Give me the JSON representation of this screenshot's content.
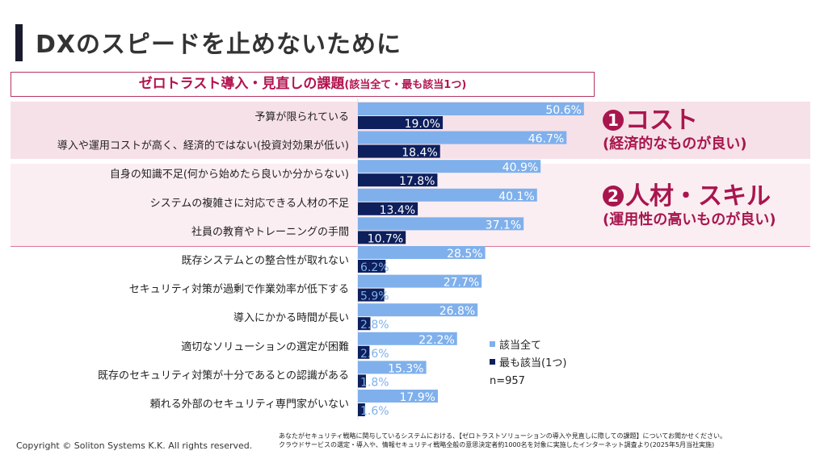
{
  "title": "DXのスピードを止めないために",
  "chart_data": {
    "type": "bar",
    "orientation": "horizontal",
    "title": "ゼロトラスト導入・見直しの課題",
    "subtitle": "(該当全て・最も該当1つ)",
    "categories": [
      "予算が限られている",
      "導入や運用コストが高く、経済的ではない(投資対効果が低い)",
      "自身の知識不足(何から始めたら良いか分からない)",
      "システムの複雑さに対応できる人材の不足",
      "社員の教育やトレーニングの手間",
      "既存システムとの整合性が取れない",
      "セキュリティ対策が過剰で作業効率が低下する",
      "導入にかかる時間が長い",
      "適切なソリューションの選定が困難",
      "既存のセキュリティ対策が十分であるとの認識がある",
      "頼れる外部のセキュリティ専門家がいない"
    ],
    "series": [
      {
        "name": "該当全て",
        "color": "#7fb0ec",
        "values": [
          50.6,
          46.7,
          40.9,
          40.1,
          37.1,
          28.5,
          27.7,
          26.8,
          22.2,
          15.3,
          17.9
        ]
      },
      {
        "name": "最も該当(1つ)",
        "color": "#0d1f5c",
        "values": [
          19.0,
          18.4,
          17.8,
          13.4,
          10.7,
          6.2,
          5.9,
          2.8,
          2.6,
          1.8,
          1.6
        ]
      }
    ],
    "unit": "%",
    "xlim": [
      0,
      100
    ],
    "sample": "n=957",
    "legend_position": "bottom-right"
  },
  "callouts": [
    {
      "number": "1",
      "title": "コスト",
      "sub": "(経済的なものが良い)"
    },
    {
      "number": "2",
      "title": "人材・スキル",
      "sub": "(運用性の高いものが良い)"
    }
  ],
  "footer": {
    "copyright": "Copyright © Soliton Systems K.K. All rights reserved.",
    "note_line1": "あなたがセキュリティ戦略に関与しているシステムにおける、【ゼロトラストソリューションの導入や見直しに際しての課題】についてお聞かせください。",
    "note_line2": "クラウドサービスの選定・導入や、情報セキュリティ戦略全般の意思決定者約1000名を対象に実施したインターネット調査より(2025年5月当社実施)"
  }
}
